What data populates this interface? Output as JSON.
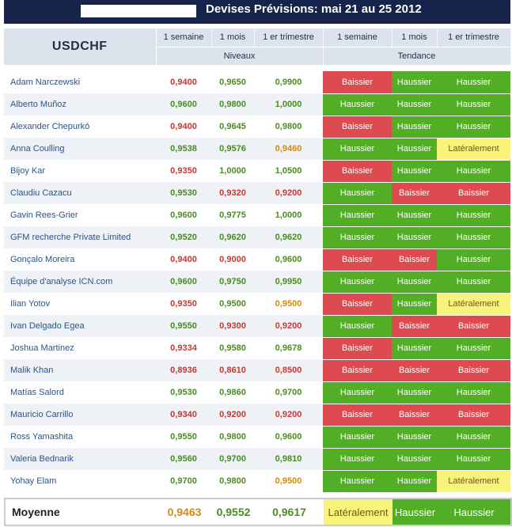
{
  "title": "Devises Prévisions: mai 21 au 25 2012",
  "pair": "USDCHF",
  "columns": {
    "week": "1 semaine",
    "month": "1 mois",
    "quarter": "1 er trimestre"
  },
  "groups": {
    "levels": "Niveaux",
    "trend": "Tendance"
  },
  "colors": {
    "header_bg": "#16234a",
    "up_green": "#52ae25",
    "down_red": "#dd4a4f",
    "sideways_yellow": "#f8f37a",
    "value_red": "#c23b34",
    "value_green": "#4b8b22",
    "value_orange": "#d48a10"
  },
  "rows": [
    {
      "name": "Adam Narczewski",
      "levels": [
        [
          "0,9400",
          "red"
        ],
        [
          "0,9650",
          "green"
        ],
        [
          "0,9900",
          "green"
        ]
      ],
      "trend": [
        [
          "Baissier",
          "red"
        ],
        [
          "Haussier",
          "green"
        ],
        [
          "Haussier",
          "green"
        ]
      ]
    },
    {
      "name": "Alberto Muñoz",
      "levels": [
        [
          "0,9600",
          "green"
        ],
        [
          "0,9800",
          "green"
        ],
        [
          "1,0000",
          "green"
        ]
      ],
      "trend": [
        [
          "Haussier",
          "green"
        ],
        [
          "Haussier",
          "green"
        ],
        [
          "Haussier",
          "green"
        ]
      ]
    },
    {
      "name": "Alexander Chepurkó",
      "levels": [
        [
          "0,9400",
          "red"
        ],
        [
          "0,9645",
          "green"
        ],
        [
          "0,9800",
          "green"
        ]
      ],
      "trend": [
        [
          "Baissier",
          "red"
        ],
        [
          "Haussier",
          "green"
        ],
        [
          "Haussier",
          "green"
        ]
      ]
    },
    {
      "name": "Anna Coulling",
      "levels": [
        [
          "0,9538",
          "green"
        ],
        [
          "0,9576",
          "green"
        ],
        [
          "0,9460",
          "orange"
        ]
      ],
      "trend": [
        [
          "Haussier",
          "green"
        ],
        [
          "Haussier",
          "green"
        ],
        [
          "Latéralement",
          "yellow"
        ]
      ]
    },
    {
      "name": "Bijoy Kar",
      "levels": [
        [
          "0,9350",
          "red"
        ],
        [
          "1,0000",
          "green"
        ],
        [
          "1,0500",
          "green"
        ]
      ],
      "trend": [
        [
          "Baissier",
          "red"
        ],
        [
          "Haussier",
          "green"
        ],
        [
          "Haussier",
          "green"
        ]
      ]
    },
    {
      "name": "Claudiu Cazacu",
      "levels": [
        [
          "0,9530",
          "green"
        ],
        [
          "0,9320",
          "red"
        ],
        [
          "0,9200",
          "red"
        ]
      ],
      "trend": [
        [
          "Haussier",
          "green"
        ],
        [
          "Baissier",
          "red"
        ],
        [
          "Baissier",
          "red"
        ]
      ]
    },
    {
      "name": "Gavin Rees-Grier",
      "levels": [
        [
          "0,9600",
          "green"
        ],
        [
          "0,9775",
          "green"
        ],
        [
          "1,0000",
          "green"
        ]
      ],
      "trend": [
        [
          "Haussier",
          "green"
        ],
        [
          "Haussier",
          "green"
        ],
        [
          "Haussier",
          "green"
        ]
      ]
    },
    {
      "name": "GFM recherche Private Limited",
      "levels": [
        [
          "0,9520",
          "green"
        ],
        [
          "0,9620",
          "green"
        ],
        [
          "0,9620",
          "green"
        ]
      ],
      "trend": [
        [
          "Haussier",
          "green"
        ],
        [
          "Haussier",
          "green"
        ],
        [
          "Haussier",
          "green"
        ]
      ]
    },
    {
      "name": "Gonçalo Moreira",
      "levels": [
        [
          "0,9400",
          "red"
        ],
        [
          "0,9000",
          "red"
        ],
        [
          "0,9600",
          "green"
        ]
      ],
      "trend": [
        [
          "Baissier",
          "red"
        ],
        [
          "Baissier",
          "red"
        ],
        [
          "Haussier",
          "green"
        ]
      ]
    },
    {
      "name": "Équipe d'analyse ICN.com",
      "levels": [
        [
          "0,9600",
          "green"
        ],
        [
          "0,9750",
          "green"
        ],
        [
          "0,9950",
          "green"
        ]
      ],
      "trend": [
        [
          "Haussier",
          "green"
        ],
        [
          "Haussier",
          "green"
        ],
        [
          "Haussier",
          "green"
        ]
      ]
    },
    {
      "name": "Ilian Yotov",
      "levels": [
        [
          "0,9350",
          "red"
        ],
        [
          "0,9500",
          "green"
        ],
        [
          "0,9500",
          "orange"
        ]
      ],
      "trend": [
        [
          "Baissier",
          "red"
        ],
        [
          "Haussier",
          "green"
        ],
        [
          "Latéralement",
          "yellow"
        ]
      ]
    },
    {
      "name": "Ivan Delgado Egea",
      "levels": [
        [
          "0,9550",
          "green"
        ],
        [
          "0,9300",
          "red"
        ],
        [
          "0,9200",
          "red"
        ]
      ],
      "trend": [
        [
          "Haussier",
          "green"
        ],
        [
          "Baissier",
          "red"
        ],
        [
          "Baissier",
          "red"
        ]
      ]
    },
    {
      "name": "Joshua Martinez",
      "levels": [
        [
          "0,9334",
          "red"
        ],
        [
          "0,9580",
          "green"
        ],
        [
          "0,9678",
          "green"
        ]
      ],
      "trend": [
        [
          "Baissier",
          "red"
        ],
        [
          "Haussier",
          "green"
        ],
        [
          "Haussier",
          "green"
        ]
      ]
    },
    {
      "name": "Malik Khan",
      "levels": [
        [
          "0,8936",
          "red"
        ],
        [
          "0,8610",
          "red"
        ],
        [
          "0,8500",
          "red"
        ]
      ],
      "trend": [
        [
          "Baissier",
          "red"
        ],
        [
          "Baissier",
          "red"
        ],
        [
          "Baissier",
          "red"
        ]
      ]
    },
    {
      "name": "Matías Salord",
      "levels": [
        [
          "0,9530",
          "green"
        ],
        [
          "0,9860",
          "green"
        ],
        [
          "0,9700",
          "green"
        ]
      ],
      "trend": [
        [
          "Haussier",
          "green"
        ],
        [
          "Haussier",
          "green"
        ],
        [
          "Haussier",
          "green"
        ]
      ]
    },
    {
      "name": "Mauricio Carrillo",
      "levels": [
        [
          "0,9340",
          "red"
        ],
        [
          "0,9200",
          "red"
        ],
        [
          "0,9200",
          "red"
        ]
      ],
      "trend": [
        [
          "Baissier",
          "red"
        ],
        [
          "Baissier",
          "red"
        ],
        [
          "Baissier",
          "red"
        ]
      ]
    },
    {
      "name": "Ross Yamashita",
      "levels": [
        [
          "0,9550",
          "green"
        ],
        [
          "0,9800",
          "green"
        ],
        [
          "0,9600",
          "green"
        ]
      ],
      "trend": [
        [
          "Haussier",
          "green"
        ],
        [
          "Haussier",
          "green"
        ],
        [
          "Haussier",
          "green"
        ]
      ]
    },
    {
      "name": "Valeria Bednarik",
      "levels": [
        [
          "0,9560",
          "green"
        ],
        [
          "0,9700",
          "green"
        ],
        [
          "0,9810",
          "green"
        ]
      ],
      "trend": [
        [
          "Haussier",
          "green"
        ],
        [
          "Haussier",
          "green"
        ],
        [
          "Haussier",
          "green"
        ]
      ]
    },
    {
      "name": "Yohay Elam",
      "levels": [
        [
          "0,9700",
          "green"
        ],
        [
          "0,9800",
          "green"
        ],
        [
          "0,9500",
          "orange"
        ]
      ],
      "trend": [
        [
          "Haussier",
          "green"
        ],
        [
          "Haussier",
          "green"
        ],
        [
          "Latéralement",
          "yellow"
        ]
      ]
    }
  ],
  "average": {
    "label": "Moyenne",
    "levels": [
      [
        "0,9463",
        "orange"
      ],
      [
        "0,9552",
        "green"
      ],
      [
        "0,9617",
        "green"
      ]
    ],
    "trend": [
      [
        "Latéralement",
        "yellow"
      ],
      [
        "Haussier",
        "green"
      ],
      [
        "Haussier",
        "green"
      ]
    ]
  }
}
